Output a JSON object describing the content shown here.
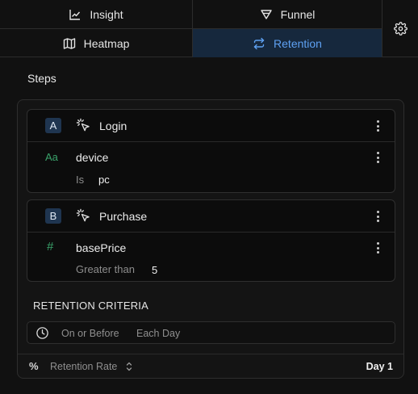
{
  "tabs": [
    {
      "label": "Insight",
      "icon": "chart-icon"
    },
    {
      "label": "Funnel",
      "icon": "funnel-icon"
    },
    {
      "label": "Heatmap",
      "icon": "map-icon"
    },
    {
      "label": "Retention",
      "icon": "repeat-icon",
      "active": true
    }
  ],
  "steps_title": "Steps",
  "steps": [
    {
      "badge": "A",
      "event": "Login",
      "filter": {
        "type_icon": "Aa",
        "property": "device",
        "operator": "Is",
        "value": "pc"
      }
    },
    {
      "badge": "B",
      "event": "Purchase",
      "filter": {
        "type_icon": "#",
        "property": "basePrice",
        "operator": "Greater than",
        "value": "5"
      }
    }
  ],
  "criteria": {
    "title": "RETENTION CRITERIA",
    "mode": "On or Before",
    "period": "Each Day"
  },
  "footer": {
    "metric_icon": "%",
    "metric": "Retention Rate",
    "day": "Day 1"
  },
  "colors": {
    "accent": "#5ea1f2",
    "active_tab_bg": "#16283d",
    "filter_icon": "#3aa36b"
  }
}
